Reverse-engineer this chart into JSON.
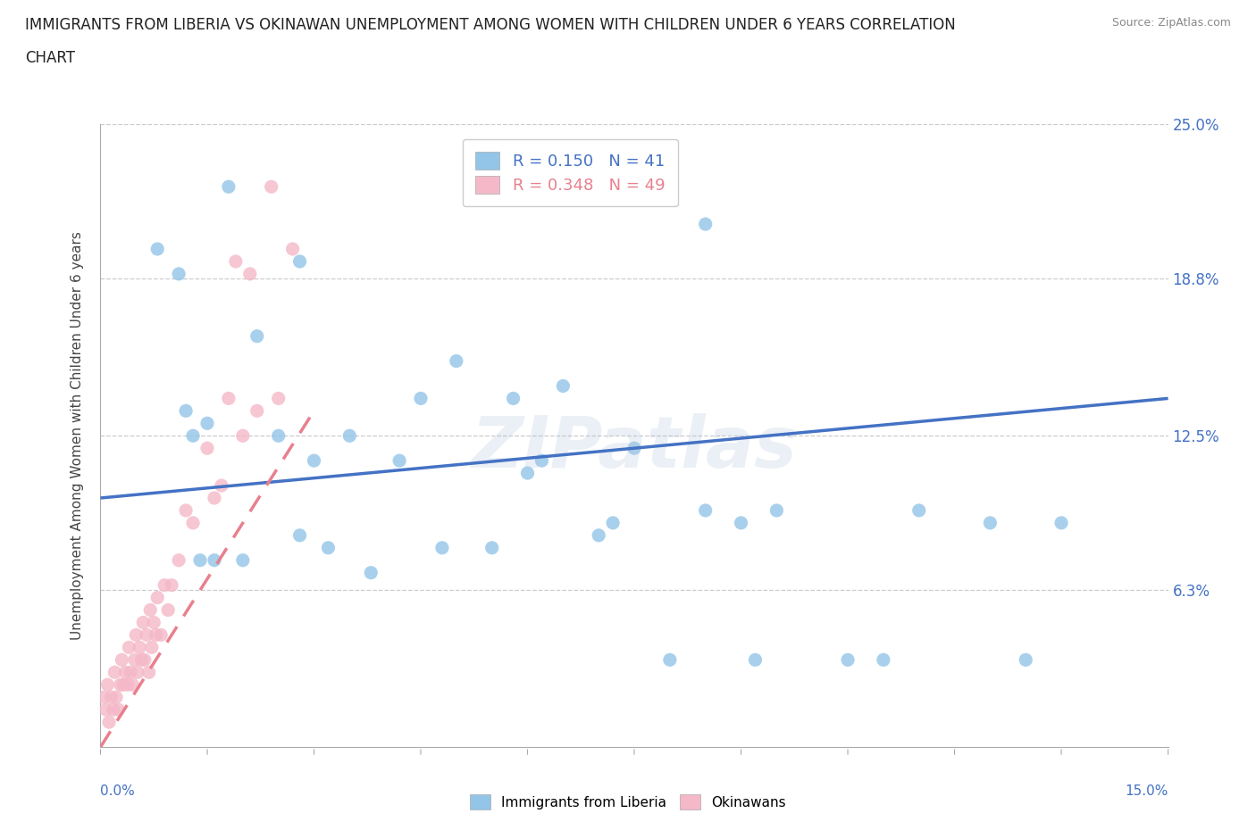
{
  "title_line1": "IMMIGRANTS FROM LIBERIA VS OKINAWAN UNEMPLOYMENT AMONG WOMEN WITH CHILDREN UNDER 6 YEARS CORRELATION",
  "title_line2": "CHART",
  "source": "Source: ZipAtlas.com",
  "xlabel_bottom_left": "0.0%",
  "xlabel_bottom_right": "15.0%",
  "ylabel": "Unemployment Among Women with Children Under 6 years",
  "x_min": 0.0,
  "x_max": 15.0,
  "y_min": 0.0,
  "y_max": 25.0,
  "y_ticks": [
    6.3,
    12.5,
    18.8,
    25.0
  ],
  "R_blue": 0.15,
  "N_blue": 41,
  "R_pink": 0.348,
  "N_pink": 49,
  "blue_scatter_color": "#92c5e8",
  "pink_scatter_color": "#f4b8c8",
  "blue_line_color": "#4472c4",
  "pink_line_color": "#e8808e",
  "watermark": "ZIPatlas",
  "blue_scatter_x": [
    1.8,
    0.8,
    2.8,
    1.1,
    2.2,
    5.0,
    6.5,
    4.5,
    5.8,
    1.2,
    1.5,
    1.3,
    2.5,
    3.5,
    7.5,
    4.2,
    3.0,
    6.0,
    6.2,
    8.5,
    8.5,
    9.5,
    11.5,
    9.0,
    12.5,
    13.5,
    7.0,
    4.8,
    3.2,
    2.0,
    1.4,
    1.6,
    2.8,
    3.8,
    5.5,
    7.2,
    10.5,
    8.0,
    9.2,
    11.0,
    13.0
  ],
  "blue_scatter_y": [
    22.5,
    20.0,
    19.5,
    19.0,
    16.5,
    15.5,
    14.5,
    14.0,
    14.0,
    13.5,
    13.0,
    12.5,
    12.5,
    12.5,
    12.0,
    11.5,
    11.5,
    11.0,
    11.5,
    21.0,
    9.5,
    9.5,
    9.5,
    9.0,
    9.0,
    9.0,
    8.5,
    8.0,
    8.0,
    7.5,
    7.5,
    7.5,
    8.5,
    7.0,
    8.0,
    9.0,
    3.5,
    3.5,
    3.5,
    3.5,
    3.5
  ],
  "pink_scatter_x": [
    0.05,
    0.08,
    0.1,
    0.12,
    0.15,
    0.18,
    0.2,
    0.22,
    0.25,
    0.28,
    0.3,
    0.32,
    0.35,
    0.38,
    0.4,
    0.42,
    0.45,
    0.48,
    0.5,
    0.52,
    0.55,
    0.58,
    0.6,
    0.62,
    0.65,
    0.68,
    0.7,
    0.72,
    0.75,
    0.78,
    0.8,
    0.85,
    0.9,
    0.95,
    1.0,
    1.1,
    1.2,
    1.3,
    1.5,
    1.6,
    1.7,
    1.8,
    1.9,
    2.0,
    2.1,
    2.2,
    2.4,
    2.5,
    2.7
  ],
  "pink_scatter_y": [
    2.0,
    1.5,
    2.5,
    1.0,
    2.0,
    1.5,
    3.0,
    2.0,
    1.5,
    2.5,
    3.5,
    2.5,
    3.0,
    2.5,
    4.0,
    3.0,
    2.5,
    3.5,
    4.5,
    3.0,
    4.0,
    3.5,
    5.0,
    3.5,
    4.5,
    3.0,
    5.5,
    4.0,
    5.0,
    4.5,
    6.0,
    4.5,
    6.5,
    5.5,
    6.5,
    7.5,
    9.5,
    9.0,
    12.0,
    10.0,
    10.5,
    14.0,
    19.5,
    12.5,
    19.0,
    13.5,
    22.5,
    14.0,
    20.0
  ],
  "blue_trend_x": [
    0.0,
    15.0
  ],
  "blue_trend_y": [
    10.0,
    14.0
  ],
  "pink_trend_x": [
    0.0,
    3.0
  ],
  "pink_trend_y": [
    0.0,
    13.5
  ]
}
